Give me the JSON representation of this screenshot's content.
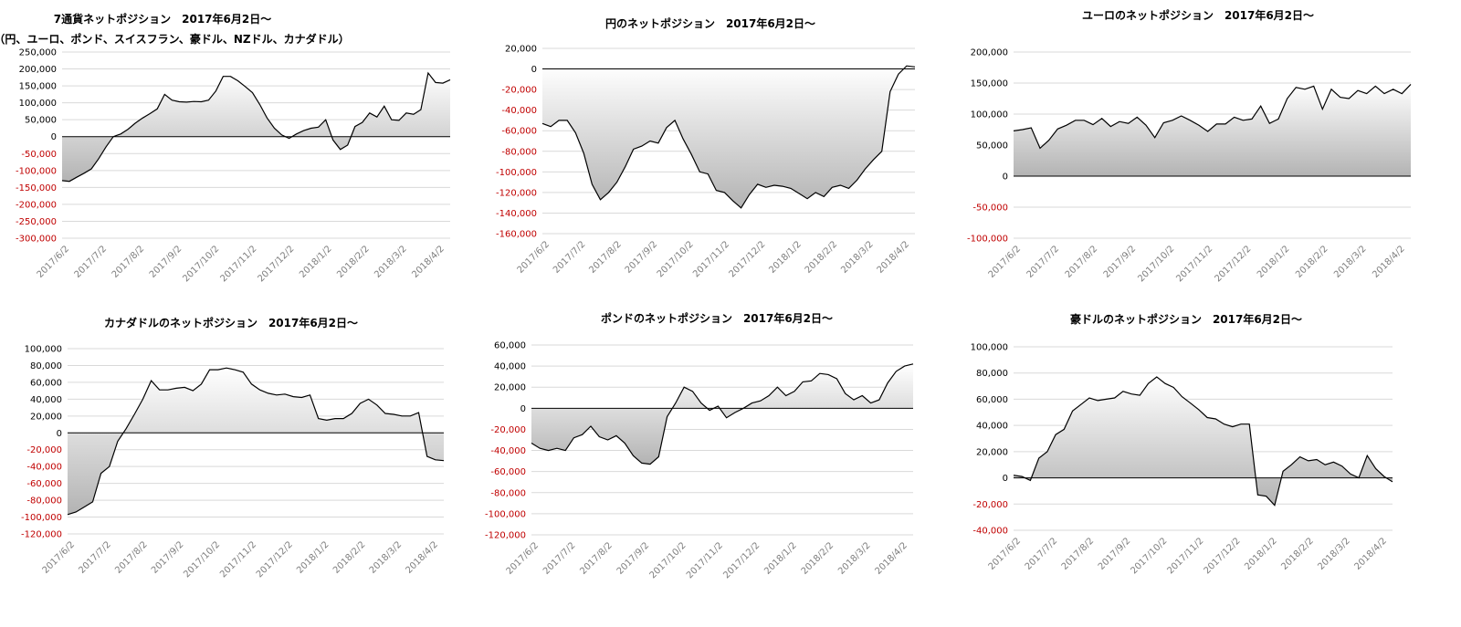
{
  "chart_data": [
    {
      "type": "area",
      "title": "7通貨ネットポジション　2017年6月2日～",
      "subtitle": "（円、ユーロ、ポンド、スイスフラン、豪ドル、NZドル、カナダドル）",
      "ylim": [
        -300000,
        250000
      ],
      "ytick_step": 50000,
      "ytick_labels": [
        "250,000",
        "200,000",
        "150,000",
        "100,000",
        "50,000",
        "0",
        "-50,000",
        "-100,000",
        "-150,000",
        "-200,000",
        "-250,000",
        "-300,000"
      ],
      "xtick_labels": [
        "2017/6/2",
        "2017/7/2",
        "2017/8/2",
        "2017/9/2",
        "2017/10/2",
        "2017/11/2",
        "2017/12/2",
        "2018/1/2",
        "2018/2/2",
        "2018/3/2",
        "2018/4/2"
      ],
      "grid": true,
      "values": [
        -130000,
        -132000,
        -120000,
        -108000,
        -95000,
        -65000,
        -30000,
        0,
        8000,
        22000,
        40000,
        55000,
        68000,
        82000,
        125000,
        108000,
        103000,
        102000,
        104000,
        103000,
        108000,
        135000,
        178000,
        178000,
        165000,
        148000,
        130000,
        95000,
        55000,
        25000,
        5000,
        -5000,
        8000,
        18000,
        25000,
        28000,
        50000,
        -10000,
        -38000,
        -25000,
        30000,
        42000,
        70000,
        58000,
        90000,
        50000,
        48000,
        70000,
        66000,
        80000,
        188000,
        160000,
        158000,
        168000
      ]
    },
    {
      "type": "area",
      "title": "円のネットポジション　2017年6月2日～",
      "ylim": [
        -160000,
        20000
      ],
      "ytick_step": 20000,
      "ytick_labels": [
        "20,000",
        "0",
        "-20,000",
        "-40,000",
        "-60,000",
        "-80,000",
        "-100,000",
        "-120,000",
        "-140,000",
        "-160,000"
      ],
      "xtick_labels": [
        "2017/6/2",
        "2017/7/2",
        "2017/8/2",
        "2017/9/2",
        "2017/10/2",
        "2017/11/2",
        "2017/12/2",
        "2018/1/2",
        "2018/2/2",
        "2018/3/2",
        "2018/4/2"
      ],
      "grid": true,
      "values": [
        -53000,
        -56000,
        -50000,
        -50000,
        -62000,
        -82000,
        -112000,
        -127000,
        -120000,
        -110000,
        -95000,
        -78000,
        -75000,
        -70000,
        -72000,
        -57000,
        -50000,
        -68000,
        -83000,
        -100000,
        -102000,
        -118000,
        -120000,
        -128000,
        -135000,
        -122000,
        -112000,
        -115000,
        -113000,
        -114000,
        -116000,
        -121000,
        -126000,
        -120000,
        -124000,
        -115000,
        -113000,
        -116000,
        -108000,
        -97000,
        -88000,
        -80000,
        -22000,
        -5000,
        3000,
        2000
      ]
    },
    {
      "type": "area",
      "title": "ユーロのネットポジション　2017年6月2日～",
      "ylim": [
        -100000,
        200000
      ],
      "ytick_step": 50000,
      "ytick_labels": [
        "200,000",
        "150,000",
        "100,000",
        "50,000",
        "0",
        "-50,000",
        "-100,000"
      ],
      "xtick_labels": [
        "2017/6/2",
        "2017/7/2",
        "2017/8/2",
        "2017/9/2",
        "2017/10/2",
        "2017/11/2",
        "2017/12/2",
        "2018/1/2",
        "2018/2/2",
        "2018/3/2",
        "2018/4/2"
      ],
      "grid": true,
      "values": [
        73000,
        75000,
        78000,
        45000,
        58000,
        76000,
        82000,
        90000,
        90000,
        83000,
        93000,
        80000,
        88000,
        85000,
        95000,
        82000,
        62000,
        86000,
        90000,
        97000,
        90000,
        82000,
        72000,
        84000,
        84000,
        95000,
        90000,
        92000,
        113000,
        85000,
        92000,
        125000,
        143000,
        140000,
        145000,
        108000,
        140000,
        127000,
        125000,
        138000,
        133000,
        145000,
        133000,
        140000,
        133000,
        148000
      ]
    },
    {
      "type": "area",
      "title": "カナダドルのネットポジション　2017年6月2日～",
      "ylim": [
        -120000,
        100000
      ],
      "ytick_step": 20000,
      "ytick_labels": [
        "100,000",
        "80,000",
        "60,000",
        "40,000",
        "20,000",
        "0",
        "-20,000",
        "-40,000",
        "-60,000",
        "-80,000",
        "-100,000",
        "-120,000"
      ],
      "xtick_labels": [
        "2017/6/2",
        "2017/7/2",
        "2017/8/2",
        "2017/9/2",
        "2017/10/2",
        "2017/11/2",
        "2017/12/2",
        "2018/1/2",
        "2018/2/2",
        "2018/3/2",
        "2018/4/2"
      ],
      "grid": true,
      "values": [
        -97000,
        -94000,
        -88000,
        -82000,
        -48000,
        -40000,
        -10000,
        5000,
        22000,
        40000,
        62000,
        51000,
        51000,
        53000,
        54000,
        50000,
        58000,
        75000,
        75000,
        77000,
        75000,
        72000,
        58000,
        51000,
        47000,
        45000,
        46000,
        43000,
        42000,
        45000,
        17000,
        15000,
        17000,
        17000,
        23000,
        35000,
        40000,
        33000,
        23000,
        22000,
        20000,
        20000,
        24000,
        -28000,
        -32000,
        -33000
      ]
    },
    {
      "type": "area",
      "title": "ポンドのネットポジション　2017年6月2日～",
      "ylim": [
        -120000,
        60000
      ],
      "ytick_step": 20000,
      "ytick_labels": [
        "60,000",
        "40,000",
        "20,000",
        "0",
        "-20,000",
        "-40,000",
        "-60,000",
        "-80,000",
        "-100,000",
        "-120,000"
      ],
      "xtick_labels": [
        "2017/6/2",
        "2017/7/2",
        "2017/8/2",
        "2017/9/2",
        "2017/10/2",
        "2017/11/2",
        "2017/12/2",
        "2018/1/2",
        "2018/2/2",
        "2018/3/2",
        "2018/4/2"
      ],
      "grid": true,
      "values": [
        -33000,
        -38000,
        -40000,
        -38000,
        -40000,
        -28000,
        -25000,
        -17000,
        -27000,
        -30000,
        -26000,
        -33000,
        -45000,
        -52000,
        -53000,
        -46000,
        -8000,
        5000,
        20000,
        16000,
        5000,
        -2000,
        2000,
        -9000,
        -4000,
        0,
        5000,
        7000,
        12000,
        20000,
        12000,
        16000,
        25000,
        26000,
        33000,
        32000,
        28000,
        14000,
        8000,
        12000,
        5000,
        8000,
        24000,
        35000,
        40000,
        42000
      ]
    },
    {
      "type": "area",
      "title": "豪ドルのネットポジション　2017年6月2日～",
      "ylim": [
        -40000,
        100000
      ],
      "ytick_step": 20000,
      "ytick_labels": [
        "100,000",
        "80,000",
        "60,000",
        "40,000",
        "20,000",
        "0",
        "-20,000",
        "-40,000"
      ],
      "xtick_labels": [
        "2017/6/2",
        "2017/7/2",
        "2017/8/2",
        "2017/9/2",
        "2017/10/2",
        "2017/11/2",
        "2017/12/2",
        "2018/1/2",
        "2018/2/2",
        "2018/3/2",
        "2018/4/2"
      ],
      "grid": true,
      "values": [
        2000,
        1000,
        -2000,
        15000,
        20000,
        33000,
        37000,
        51000,
        56000,
        61000,
        59000,
        60000,
        61000,
        66000,
        64000,
        63000,
        72000,
        77000,
        72000,
        69000,
        62000,
        57000,
        52000,
        46000,
        45000,
        41000,
        39000,
        41000,
        41000,
        -13000,
        -14000,
        -21000,
        5000,
        10000,
        16000,
        13000,
        14000,
        10000,
        12000,
        9000,
        3000,
        0,
        17000,
        7000,
        1000,
        -3000
      ]
    }
  ]
}
